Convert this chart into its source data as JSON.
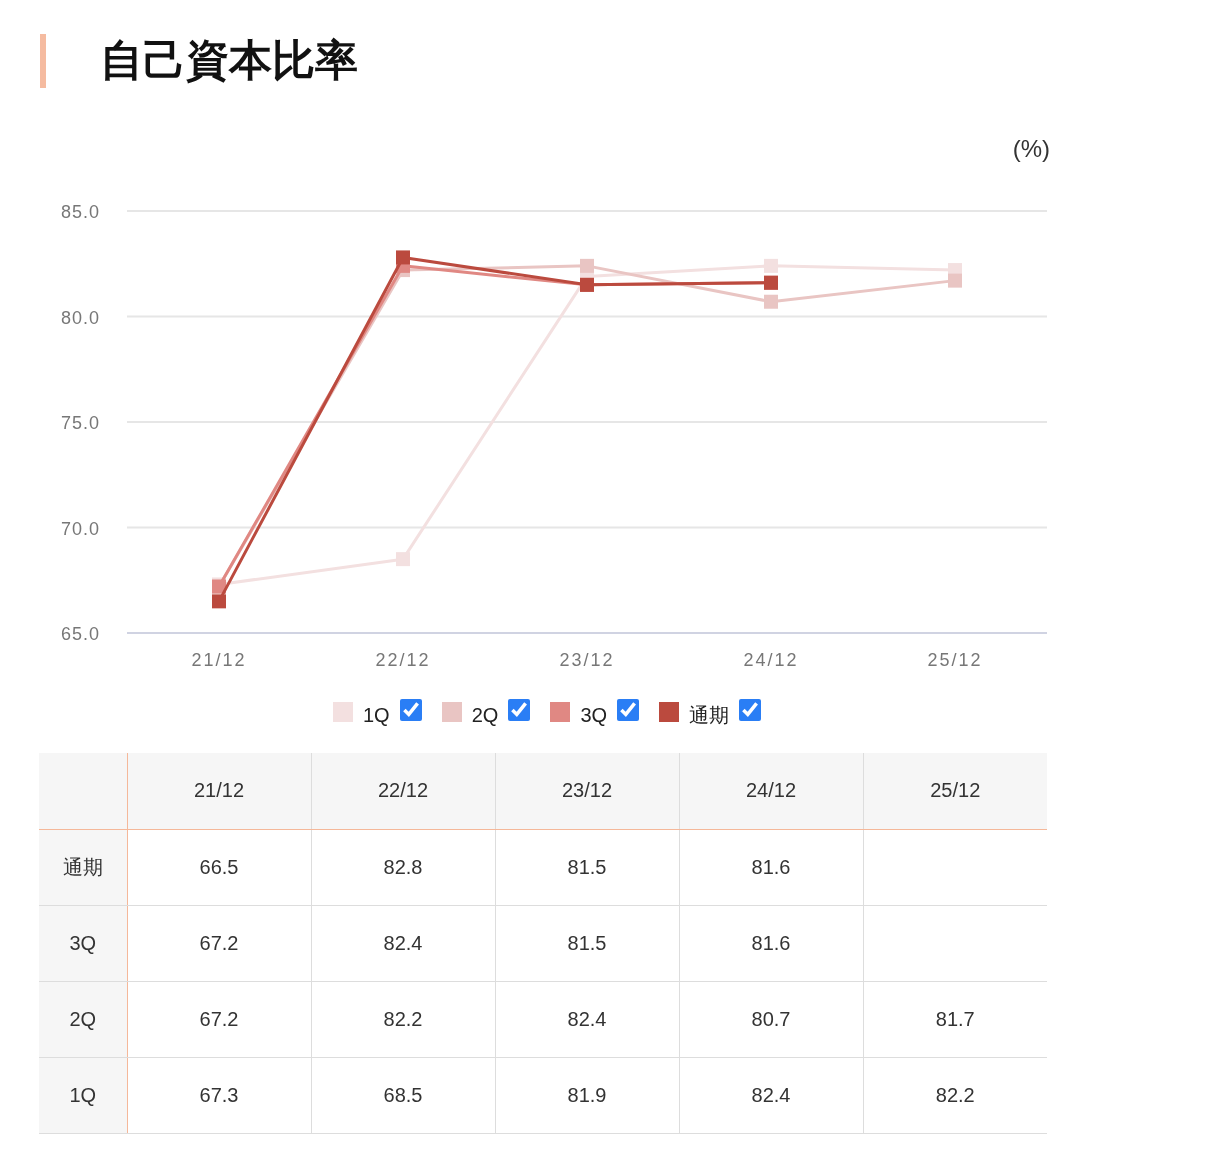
{
  "chart_data": {
    "type": "line",
    "title": "自己資本比率",
    "ylabel": "(%)",
    "categories": [
      "21/12",
      "22/12",
      "23/12",
      "24/12",
      "25/12"
    ],
    "series": [
      {
        "name": "1Q",
        "color": "#f3e0e0",
        "values": [
          67.3,
          68.5,
          81.9,
          82.4,
          82.2
        ]
      },
      {
        "name": "2Q",
        "color": "#e9c5c3",
        "values": [
          67.2,
          82.2,
          82.4,
          80.7,
          81.7
        ]
      },
      {
        "name": "3Q",
        "color": "#e08883",
        "values": [
          67.2,
          82.4,
          81.5,
          81.6,
          null
        ]
      },
      {
        "name": "通期",
        "color": "#bb4a3e",
        "values": [
          66.5,
          82.8,
          81.5,
          81.6,
          null
        ]
      }
    ],
    "ylim": [
      65,
      85
    ],
    "yticks": [
      {
        "value": 65,
        "label": "65.0"
      },
      {
        "value": 70,
        "label": "70.0"
      },
      {
        "value": 75,
        "label": "75.0"
      },
      {
        "value": 80,
        "label": "80.0"
      },
      {
        "value": 85,
        "label": "85.0"
      }
    ],
    "grid": "y",
    "legend": "bottom",
    "marker": "square",
    "line_style": "solid",
    "data_labels": true
  }
}
